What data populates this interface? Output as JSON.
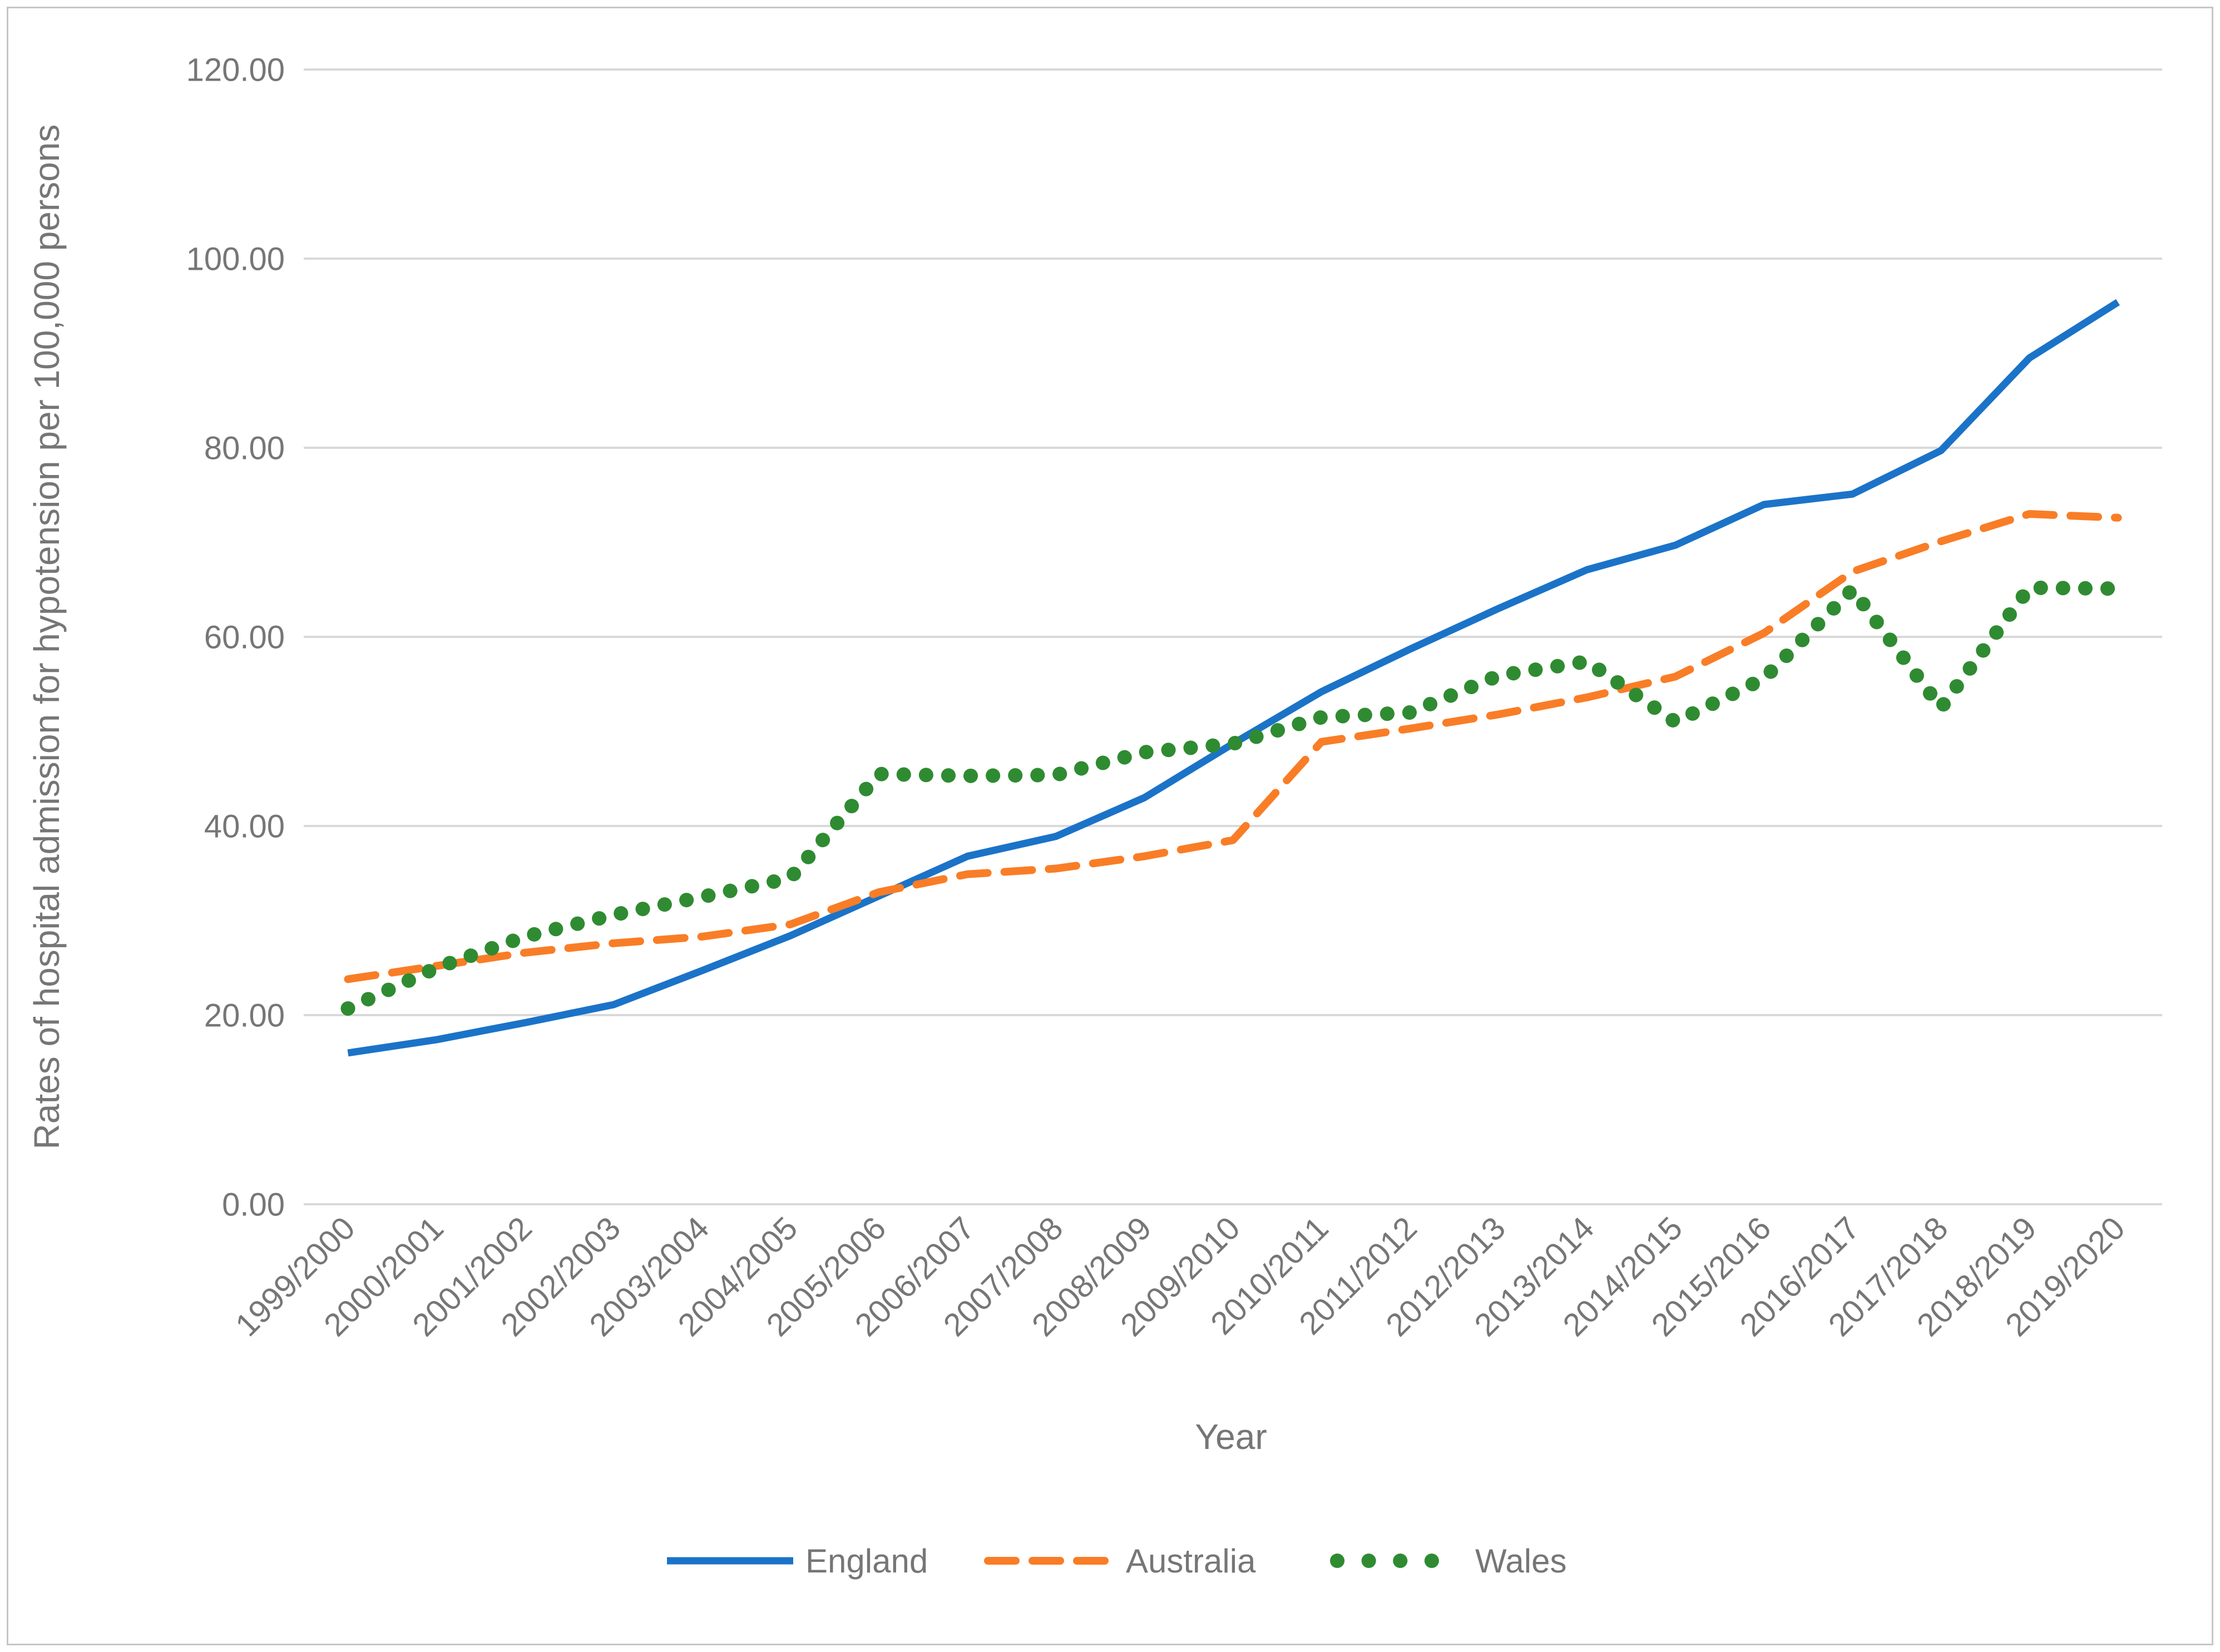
{
  "chart_data": {
    "type": "line",
    "title": "",
    "xlabel": "Year",
    "ylabel": "Rates of hospital admission for hypotension per 100,000 persons",
    "categories": [
      "1999/2000",
      "2000/2001",
      "2001/2002",
      "2002/2003",
      "2003/2004",
      "2004/2005",
      "2005/2006",
      "2006/2007",
      "2007/2008",
      "2008/2009",
      "2009/2010",
      "2010/2011",
      "2011/2012",
      "2012/2013",
      "2013/2014",
      "2014/2015",
      "2015/2016",
      "2016/2017",
      "2017/2018",
      "2018/2019",
      "2019/2020"
    ],
    "series": [
      {
        "name": "England",
        "color": "#1b73c8",
        "style": "solid",
        "values": [
          16.0,
          17.4,
          19.2,
          21.1,
          24.7,
          28.4,
          32.6,
          36.8,
          38.9,
          43.0,
          48.7,
          54.2,
          58.7,
          63.0,
          67.1,
          69.7,
          74.0,
          75.1,
          79.7,
          89.5,
          95.4
        ]
      },
      {
        "name": "Australia",
        "color": "#f97d26",
        "style": "dashed",
        "values": [
          23.8,
          25.2,
          26.6,
          27.6,
          28.3,
          29.6,
          33.0,
          34.9,
          35.5,
          36.8,
          38.5,
          48.9,
          50.3,
          51.8,
          53.6,
          55.8,
          60.4,
          66.9,
          70.1,
          73.0,
          72.6
        ]
      },
      {
        "name": "Wales",
        "color": "#2f8b31",
        "style": "dotted",
        "values": [
          20.7,
          25.0,
          28.3,
          30.6,
          32.5,
          34.5,
          45.5,
          45.3,
          45.4,
          47.8,
          48.7,
          51.5,
          52.0,
          55.9,
          57.4,
          51.0,
          55.6,
          65.0,
          52.5,
          65.2,
          65.1
        ]
      }
    ],
    "ylim": [
      0,
      120
    ],
    "yticks": {
      "values": [
        0,
        20,
        40,
        60,
        80,
        100,
        120
      ],
      "labels": [
        "0.00",
        "20.00",
        "40.00",
        "60.00",
        "80.00",
        "100.00",
        "120.00"
      ]
    },
    "grid": "horizontal-major",
    "legend_position": "bottom",
    "colors": {
      "axis_text": "#767676",
      "gridline": "#d9d9d9",
      "frame_border": "#c6c6c6",
      "background": "#ffffff"
    }
  }
}
